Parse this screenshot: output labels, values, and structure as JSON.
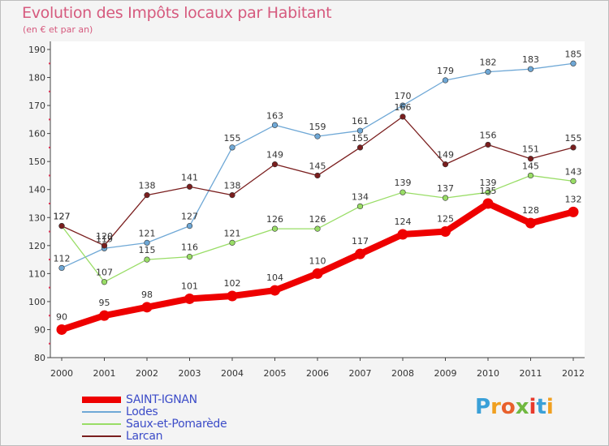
{
  "title": "Evolution des Impôts locaux par Habitant",
  "subtitle": "(en € et par an)",
  "logo": {
    "letters": [
      "P",
      "r",
      "o",
      "x",
      "i",
      "t",
      "i"
    ],
    "colors": [
      "#3aa0d8",
      "#f0a020",
      "#e8602c",
      "#70b840",
      "#e83a2c",
      "#3aa0d8",
      "#f0a020"
    ]
  },
  "chart_data": {
    "type": "line",
    "x": [
      "2000",
      "2001",
      "2002",
      "2003",
      "2004",
      "2005",
      "2006",
      "2007",
      "2008",
      "2009",
      "2010",
      "2011",
      "2012"
    ],
    "ylim": [
      80,
      190
    ],
    "yticks": [
      "80",
      "90",
      "100",
      "110",
      "120",
      "130",
      "140",
      "150",
      "160",
      "170",
      "180",
      "190"
    ],
    "grid": false,
    "legend_position": "bottom-left",
    "series": [
      {
        "name": "SAINT-IGNAN",
        "color": "#ee0000",
        "values": [
          90,
          95,
          98,
          101,
          102,
          104,
          110,
          117,
          124,
          125,
          135,
          128,
          132
        ]
      },
      {
        "name": "Lodes",
        "color": "#6fa8d6",
        "values": [
          112,
          119,
          121,
          127,
          155,
          163,
          159,
          161,
          170,
          179,
          182,
          183,
          185
        ]
      },
      {
        "name": "Saux-et-Pomarède",
        "color": "#99dd66",
        "values": [
          127,
          107,
          115,
          116,
          121,
          126,
          126,
          134,
          139,
          137,
          139,
          145,
          143
        ]
      },
      {
        "name": "Larcan",
        "color": "#7a1e1e",
        "values": [
          127,
          120,
          138,
          141,
          138,
          149,
          145,
          155,
          166,
          149,
          156,
          151,
          155
        ]
      }
    ]
  }
}
